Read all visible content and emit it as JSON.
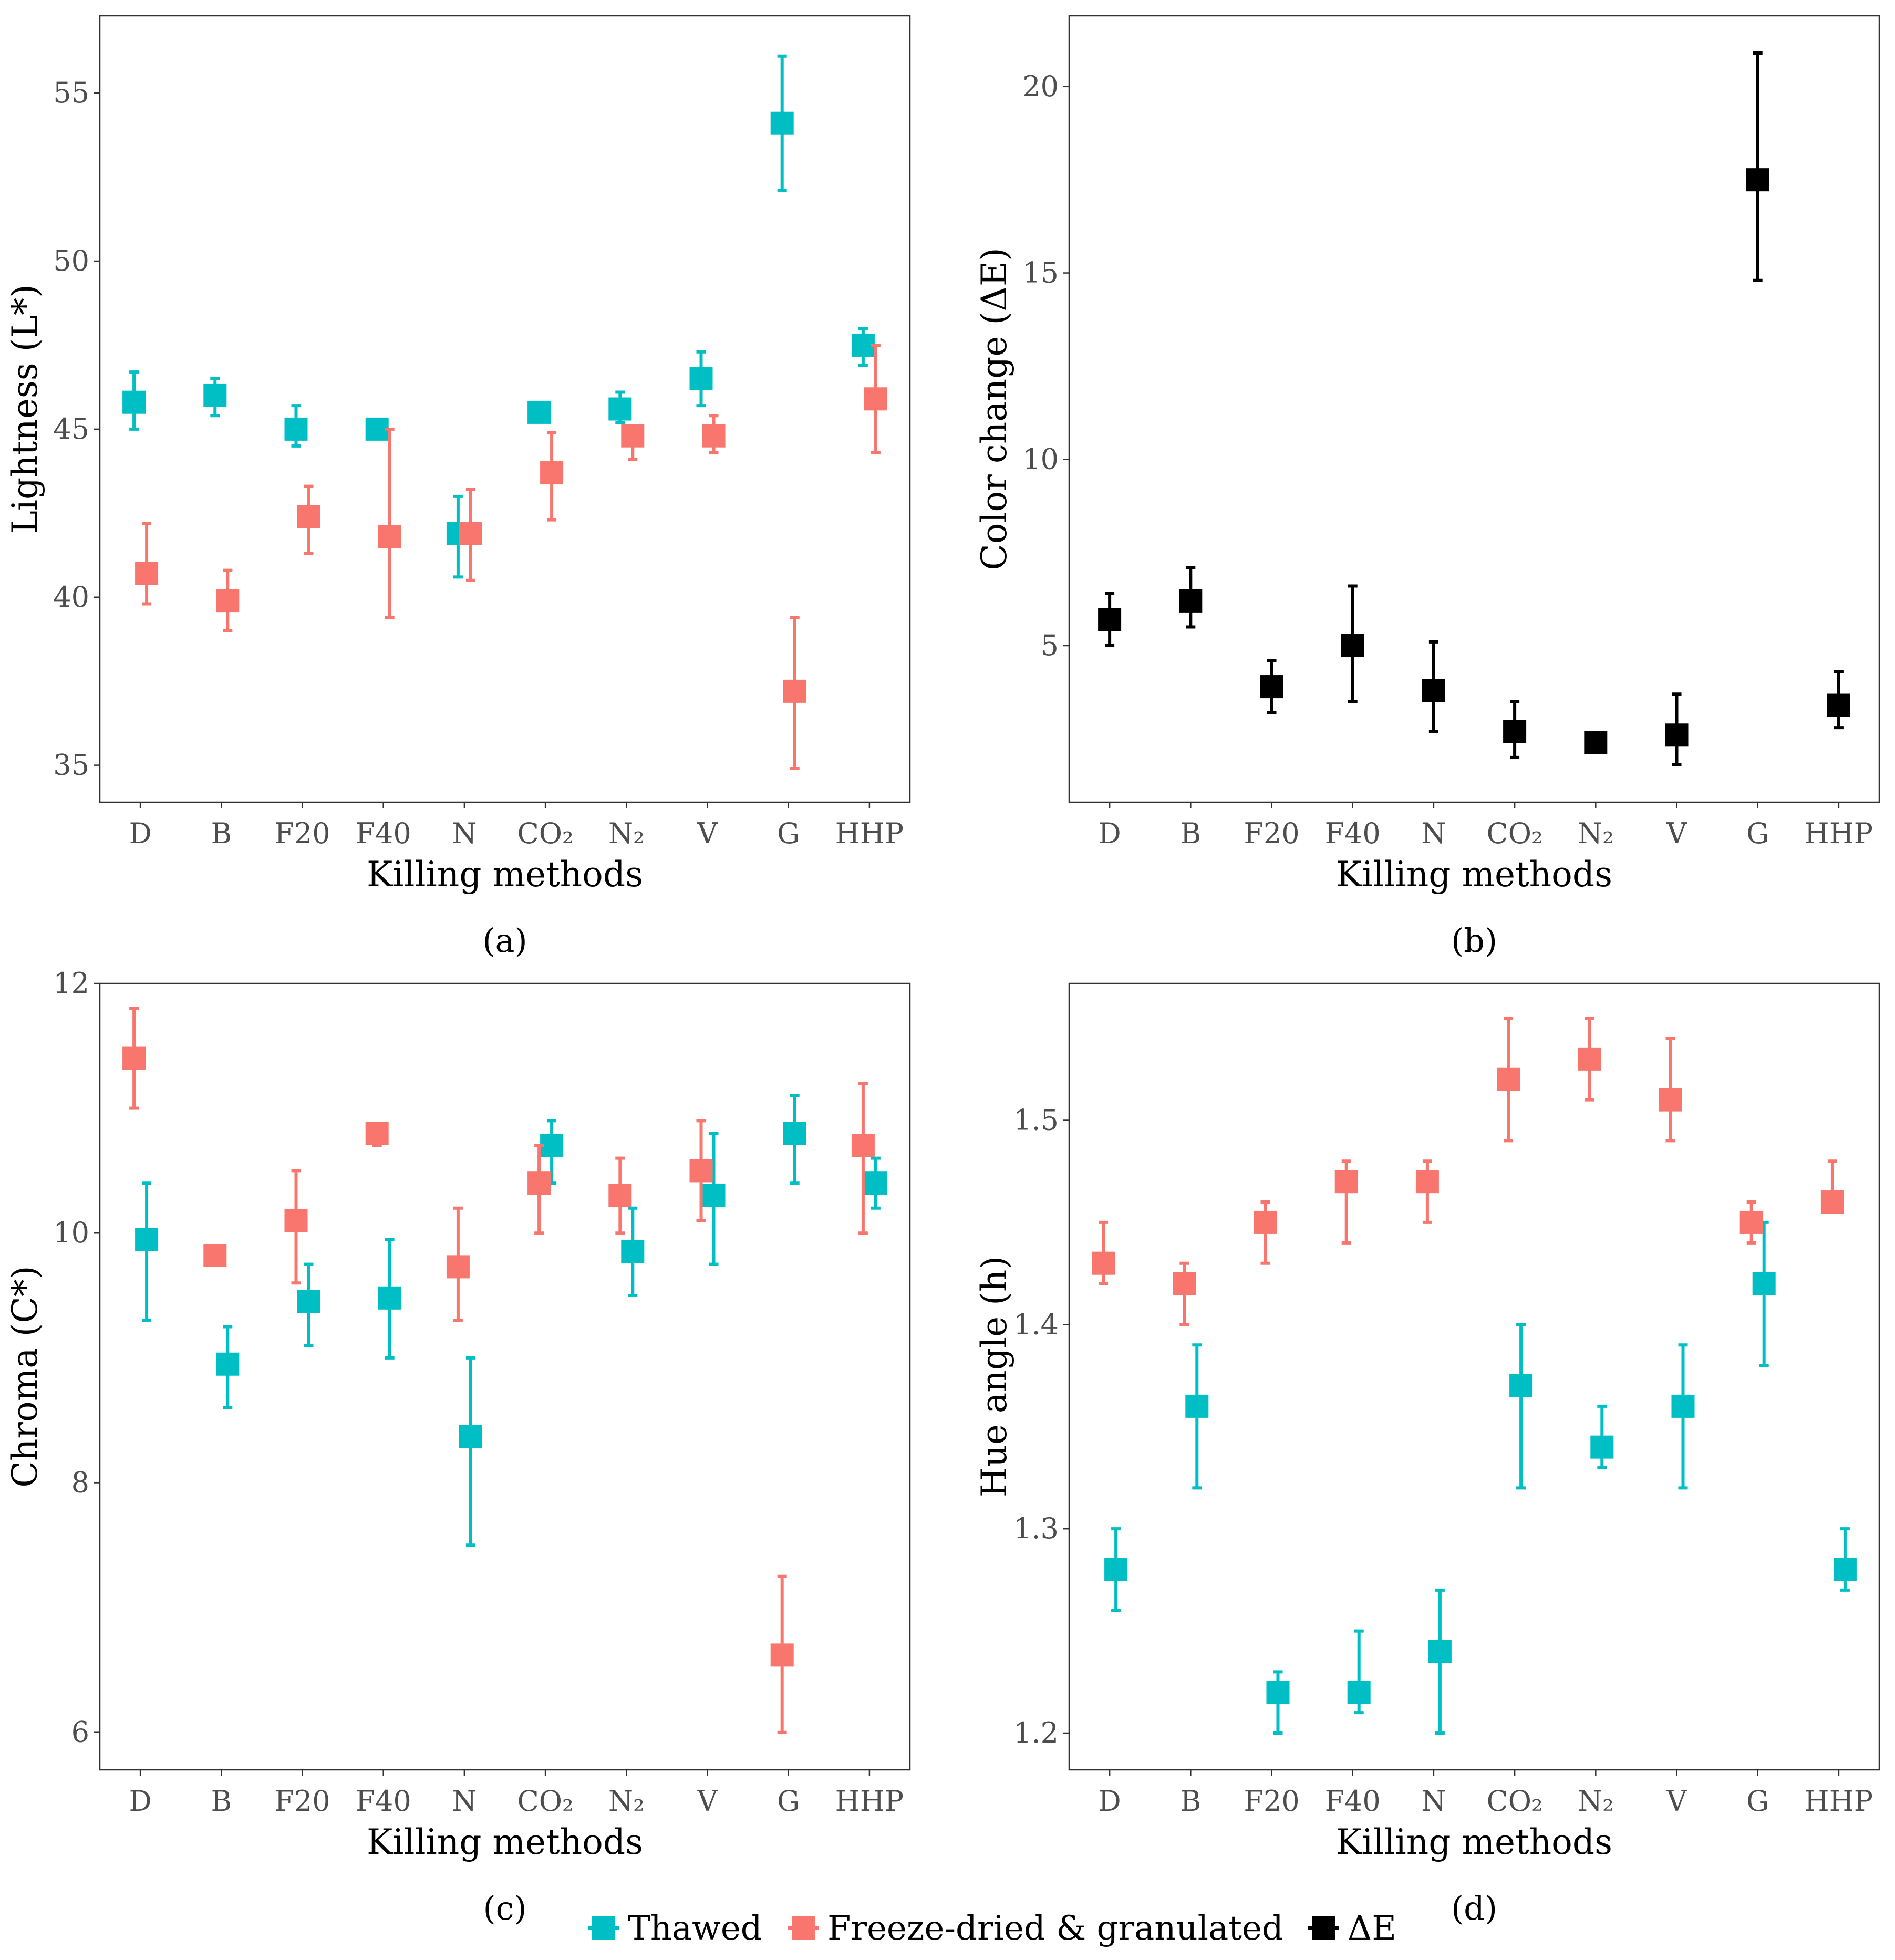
{
  "colors": {
    "thawed": "#00BFC4",
    "freeze_dried": "#F8766D",
    "delta_e": "#000000"
  },
  "legend": {
    "items": [
      {
        "name": "Thawed",
        "color": "#00BFC4"
      },
      {
        "name": "Freeze-dried & granulated",
        "color": "#F8766D"
      },
      {
        "name": "ΔE",
        "color": "#000000"
      }
    ]
  },
  "chart_data": [
    {
      "panel": "(a)",
      "type": "scatter",
      "ylabel": "Lightness (L*)",
      "xlabel": "Killing methods",
      "categories": [
        "D",
        "B",
        "F20",
        "F40",
        "N",
        "CO₂",
        "N₂",
        "V",
        "G",
        "HHP"
      ],
      "ylim": [
        33.9,
        57.3
      ],
      "yticks": [
        35,
        40,
        45,
        50,
        55
      ],
      "series": [
        {
          "name": "Thawed",
          "color": "#00BFC4",
          "values": [
            45.8,
            46.0,
            45.0,
            45.0,
            41.9,
            45.5,
            45.6,
            46.5,
            54.1,
            47.5
          ],
          "lower": [
            45.0,
            45.4,
            44.5,
            45.0,
            40.6,
            45.5,
            45.2,
            45.7,
            52.1,
            46.9
          ],
          "upper": [
            46.7,
            46.5,
            45.7,
            45.0,
            43.0,
            45.5,
            46.1,
            47.3,
            56.1,
            48.0
          ]
        },
        {
          "name": "Freeze-dried & granulated",
          "color": "#F8766D",
          "values": [
            40.7,
            39.9,
            42.4,
            41.8,
            41.9,
            43.7,
            44.8,
            44.8,
            37.2,
            45.9
          ],
          "lower": [
            39.8,
            39.0,
            41.3,
            39.4,
            40.5,
            42.3,
            44.1,
            44.3,
            34.9,
            44.3
          ],
          "upper": [
            42.2,
            40.8,
            43.3,
            45.0,
            43.2,
            44.9,
            45.1,
            45.4,
            39.4,
            47.5
          ]
        }
      ]
    },
    {
      "panel": "(b)",
      "type": "scatter",
      "ylabel": "Color change (ΔE)",
      "xlabel": "Killing methods",
      "categories": [
        "D",
        "B",
        "F20",
        "F40",
        "N",
        "CO₂",
        "N₂",
        "V",
        "G",
        "HHP"
      ],
      "ylim": [
        0.8,
        21.9
      ],
      "yticks": [
        5,
        10,
        15,
        20
      ],
      "series": [
        {
          "name": "ΔE",
          "color": "#000000",
          "values": [
            5.7,
            6.2,
            3.9,
            5.0,
            3.8,
            2.7,
            2.4,
            2.6,
            17.5,
            3.4
          ],
          "lower": [
            5.0,
            5.5,
            3.2,
            3.5,
            2.7,
            2.0,
            2.4,
            1.8,
            14.8,
            2.8
          ],
          "upper": [
            6.4,
            7.1,
            4.6,
            6.6,
            5.1,
            3.5,
            2.4,
            3.7,
            20.9,
            4.3
          ]
        }
      ]
    },
    {
      "panel": "(c)",
      "type": "scatter",
      "ylabel": "Chroma (C*)",
      "xlabel": "Killing methods",
      "categories": [
        "D",
        "B",
        "F20",
        "F40",
        "N",
        "CO₂",
        "N₂",
        "V",
        "G",
        "HHP"
      ],
      "ylim": [
        5.7,
        12.0
      ],
      "yticks": [
        6,
        8,
        10,
        12
      ],
      "series": [
        {
          "name": "Thawed",
          "color": "#00BFC4",
          "values": [
            9.95,
            8.95,
            9.45,
            9.48,
            8.37,
            10.7,
            9.85,
            10.3,
            10.8,
            10.4
          ],
          "lower": [
            9.3,
            8.6,
            9.1,
            9.0,
            7.5,
            10.4,
            9.5,
            9.75,
            10.4,
            10.2
          ],
          "upper": [
            10.4,
            9.25,
            9.75,
            9.95,
            9.0,
            10.9,
            10.2,
            10.8,
            11.1,
            10.6
          ]
        },
        {
          "name": "Freeze-dried & granulated",
          "color": "#F8766D",
          "values": [
            11.4,
            9.82,
            10.1,
            10.8,
            9.73,
            10.4,
            10.3,
            10.5,
            6.62,
            10.7
          ],
          "lower": [
            11.0,
            9.82,
            9.6,
            10.7,
            9.3,
            10.0,
            10.0,
            10.1,
            6.0,
            10.0
          ],
          "upper": [
            11.8,
            9.82,
            10.5,
            10.85,
            10.2,
            10.7,
            10.6,
            10.9,
            7.25,
            11.2
          ]
        }
      ]
    },
    {
      "panel": "(d)",
      "type": "scatter",
      "ylabel": "Hue angle (h)",
      "xlabel": "Killing methods",
      "categories": [
        "D",
        "B",
        "F20",
        "F40",
        "N",
        "CO₂",
        "N₂",
        "V",
        "G",
        "HHP"
      ],
      "ylim": [
        1.182,
        1.567
      ],
      "yticks": [
        1.2,
        1.3,
        1.4,
        1.5
      ],
      "series": [
        {
          "name": "Thawed",
          "color": "#00BFC4",
          "values": [
            1.28,
            1.36,
            1.22,
            1.22,
            1.24,
            1.37,
            1.34,
            1.36,
            1.42,
            1.28
          ],
          "lower": [
            1.26,
            1.32,
            1.2,
            1.21,
            1.2,
            1.32,
            1.33,
            1.32,
            1.38,
            1.27
          ],
          "upper": [
            1.3,
            1.39,
            1.23,
            1.25,
            1.27,
            1.4,
            1.36,
            1.39,
            1.45,
            1.3
          ]
        },
        {
          "name": "Freeze-dried & granulated",
          "color": "#F8766D",
          "values": [
            1.43,
            1.42,
            1.45,
            1.47,
            1.47,
            1.52,
            1.53,
            1.51,
            1.45,
            1.46
          ],
          "lower": [
            1.42,
            1.4,
            1.43,
            1.44,
            1.45,
            1.49,
            1.51,
            1.49,
            1.44,
            1.46
          ],
          "upper": [
            1.45,
            1.43,
            1.46,
            1.48,
            1.48,
            1.55,
            1.55,
            1.54,
            1.46,
            1.48
          ]
        }
      ]
    }
  ]
}
